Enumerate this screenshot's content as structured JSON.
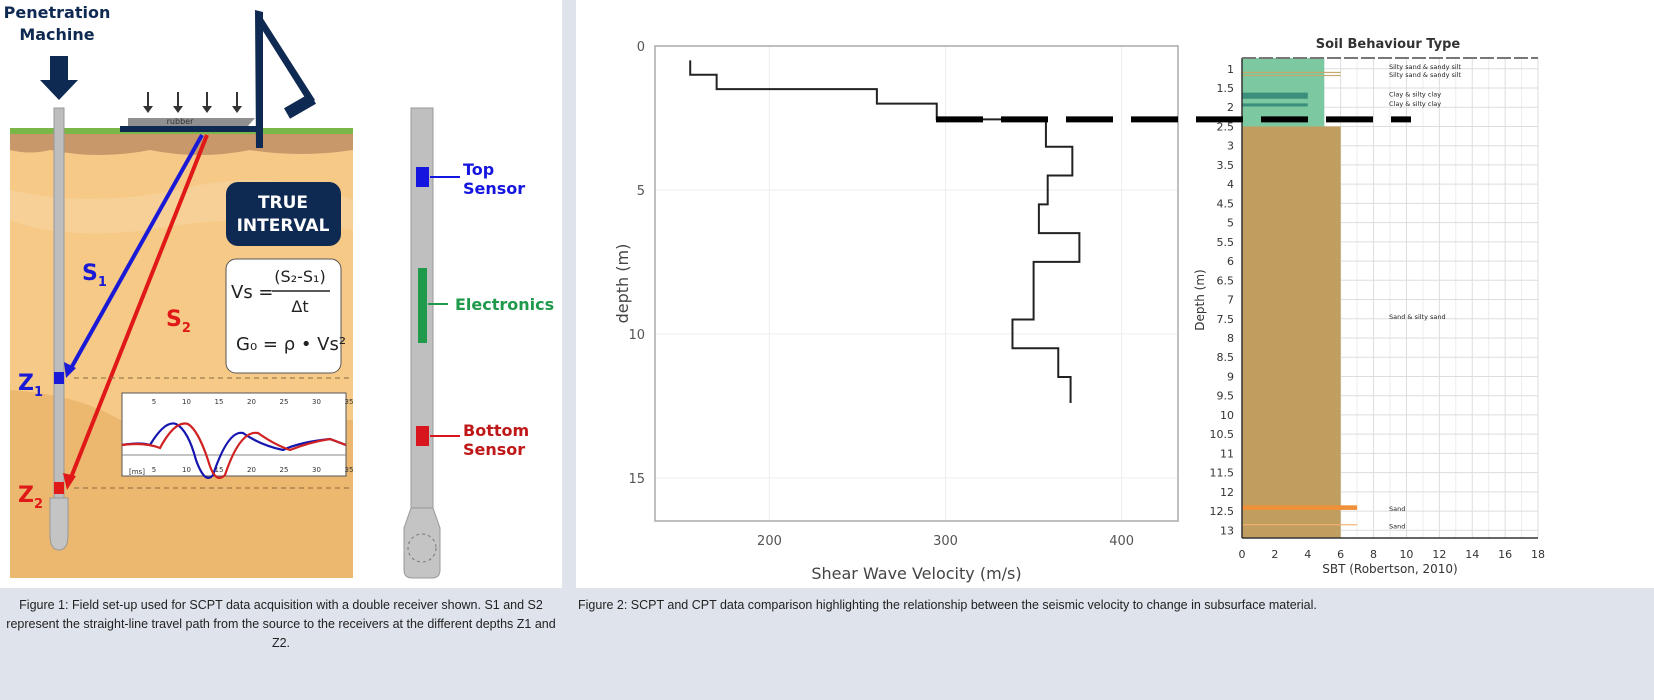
{
  "figure1": {
    "machine_label": [
      "Penetration",
      "Machine"
    ],
    "rubber_label": "rubber",
    "true_interval": [
      "TRUE",
      "INTERVAL"
    ],
    "formula_vs": {
      "lhs": "Vs =",
      "numerator": "(S₂-S₁)",
      "denominator": "Δt"
    },
    "formula_g0": "G₀ = ρ • Vs²",
    "s1": "S",
    "s1_sub": "1",
    "s2": "S",
    "s2_sub": "2",
    "z1": "Z",
    "z1_sub": "1",
    "z2": "Z",
    "z2_sub": "2",
    "waveform_ticks": [
      "5",
      "10",
      "15",
      "20",
      "25",
      "30",
      "35"
    ],
    "waveform_unit": "[ms]",
    "colors": {
      "navy": "#0f2a52",
      "blue": "#1a1ad6",
      "red": "#e01818",
      "soil": "#f6c987",
      "grass": "#7ab648"
    }
  },
  "probe": {
    "top_sensor": [
      "Top",
      "Sensor"
    ],
    "electronics": "Electronics",
    "bottom_sensor": [
      "Bottom",
      "Sensor"
    ],
    "colors": {
      "top": "#1515e0",
      "electronics": "#1e9a4a",
      "bottom": "#d8141c"
    }
  },
  "chart_data": [
    {
      "type": "line",
      "subtype": "step",
      "xlabel": "Shear Wave Velocity (m/s)",
      "ylabel": "depth (m)",
      "xlim": [
        135,
        432
      ],
      "ylim": [
        0,
        16.5
      ],
      "y_inverted": true,
      "xticks": [
        200,
        300,
        400
      ],
      "yticks": [
        0,
        5,
        10,
        15
      ],
      "grid": true,
      "segments": [
        {
          "depth_top": 0.5,
          "depth_bottom": 1.0,
          "velocity": 155
        },
        {
          "depth_top": 1.0,
          "depth_bottom": 1.5,
          "velocity": 170
        },
        {
          "depth_top": 1.5,
          "depth_bottom": 2.0,
          "velocity": 261
        },
        {
          "depth_top": 2.0,
          "depth_bottom": 2.55,
          "velocity": 295
        },
        {
          "depth_top": 2.55,
          "depth_bottom": 3.5,
          "velocity": 357
        },
        {
          "depth_top": 3.5,
          "depth_bottom": 4.5,
          "velocity": 372
        },
        {
          "depth_top": 4.5,
          "depth_bottom": 5.5,
          "velocity": 358
        },
        {
          "depth_top": 5.5,
          "depth_bottom": 6.5,
          "velocity": 353
        },
        {
          "depth_top": 6.5,
          "depth_bottom": 7.5,
          "velocity": 376
        },
        {
          "depth_top": 7.5,
          "depth_bottom": 9.5,
          "velocity": 350
        },
        {
          "depth_top": 9.5,
          "depth_bottom": 10.5,
          "velocity": 338
        },
        {
          "depth_top": 10.5,
          "depth_bottom": 11.5,
          "velocity": 364
        },
        {
          "depth_top": 11.5,
          "depth_bottom": 12.4,
          "velocity": 371
        }
      ],
      "annotation": {
        "type": "dashed-line",
        "depth": 2.55
      }
    },
    {
      "type": "bar",
      "orientation": "horizontal",
      "title": "Soil Behaviour Type",
      "xlabel": "SBT (Robertson, 2010)",
      "ylabel": "Depth (m)",
      "xlim": [
        0,
        18
      ],
      "ylim": [
        0.72,
        13.2
      ],
      "y_inverted": true,
      "xticks": [
        0,
        2,
        4,
        6,
        8,
        10,
        12,
        14,
        16,
        18
      ],
      "yticks": [
        1,
        1.5,
        2,
        2.5,
        3,
        3.5,
        4,
        4.5,
        5,
        5.5,
        6,
        6.5,
        7,
        7.5,
        8,
        8.5,
        9,
        9.5,
        10,
        10.5,
        11,
        11.5,
        12,
        12.5,
        13
      ],
      "grid": true,
      "layers": [
        {
          "depth_top": 0.72,
          "depth_bottom": 2.5,
          "sbt": 5,
          "color": "#7cc8a0"
        },
        {
          "depth_top": 1.08,
          "depth_bottom": 1.11,
          "sbt": 6,
          "color": "#c8a86a"
        },
        {
          "depth_top": 1.16,
          "depth_bottom": 1.19,
          "sbt": 6,
          "color": "#c8a86a"
        },
        {
          "depth_top": 1.62,
          "depth_bottom": 1.78,
          "sbt": 4,
          "color": "#3c8e7c"
        },
        {
          "depth_top": 1.9,
          "depth_bottom": 1.98,
          "sbt": 4,
          "color": "#3c8e7c"
        },
        {
          "depth_top": 2.5,
          "depth_bottom": 13.2,
          "sbt": 6,
          "color": "#bf9e60"
        },
        {
          "depth_top": 12.35,
          "depth_bottom": 12.47,
          "sbt": 7,
          "color": "#f0913a"
        },
        {
          "depth_top": 12.84,
          "depth_bottom": 12.87,
          "sbt": 7,
          "color": "#f5b070"
        }
      ],
      "annotations": [
        {
          "text": "Silty sand & sandy silt",
          "depth": 1.0
        },
        {
          "text": "Silty sand & sandy silt",
          "depth": 1.22
        },
        {
          "text": "Clay & silty clay",
          "depth": 1.72
        },
        {
          "text": "Clay & silty clay",
          "depth": 1.97
        },
        {
          "text": "Sand & silty sand",
          "depth": 7.5
        },
        {
          "text": "Sand",
          "depth": 12.5
        },
        {
          "text": "Sand",
          "depth": 12.95
        }
      ]
    }
  ],
  "captions": {
    "figure1": "Figure 1: Field set-up used for SCPT data acquisition with a double receiver shown. S1 and S2 represent the straight-line travel path from the source to the receivers at the different depths Z1 and Z2.",
    "figure2": "Figure 2: SCPT and CPT data comparison highlighting the relationship between the seismic velocity to change in subsurface material."
  }
}
